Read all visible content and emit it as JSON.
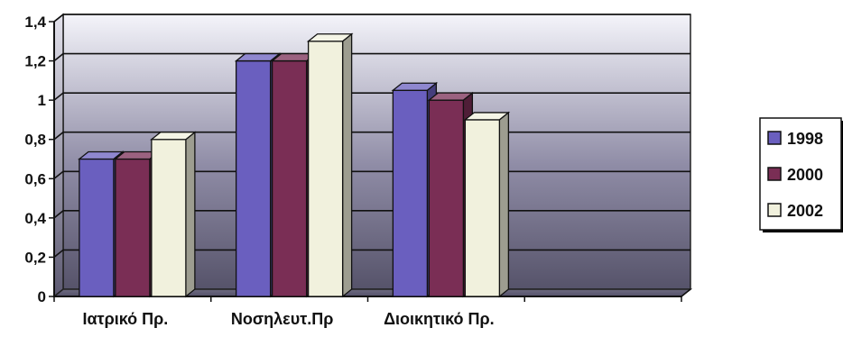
{
  "chart_data": {
    "type": "bar",
    "title": "",
    "xlabel": "",
    "ylabel": "",
    "categories": [
      "Ιατρικό Πρ.",
      "Νοσηλευτ.Πρ",
      "Διοικητικό Πρ."
    ],
    "series": [
      {
        "name": "1998",
        "values": [
          0.7,
          1.2,
          1.05
        ],
        "color": "#6a5fbf"
      },
      {
        "name": "2000",
        "values": [
          0.7,
          1.2,
          1.0
        ],
        "color": "#7a2e55"
      },
      {
        "name": "2002",
        "values": [
          0.8,
          1.3,
          0.9
        ],
        "color": "#f1f1dd"
      }
    ],
    "yticks": [
      "0",
      "0,2",
      "0,4",
      "0,6",
      "0,8",
      "1",
      "1,2",
      "1,4"
    ],
    "ylim": [
      0,
      1.4
    ],
    "grid": true,
    "legend_position": "right",
    "style": "3d-columns"
  }
}
